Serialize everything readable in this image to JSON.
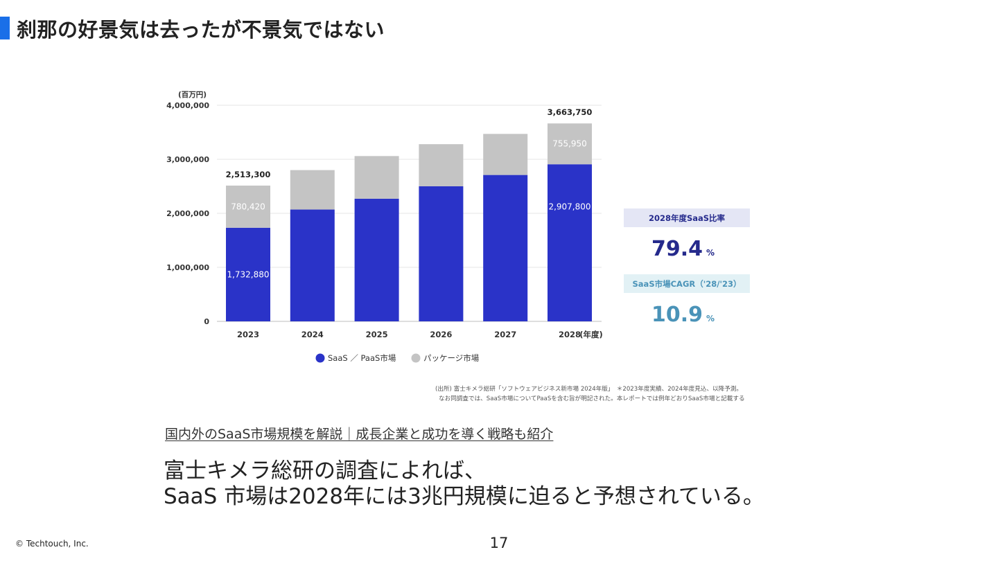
{
  "slide": {
    "title": "刹那の好景気は去ったが不景気ではない",
    "link_text": "国内外のSaaS市場規模を解説｜成長企業と成功を導く戦略も紹介",
    "body_line1": "富士キメラ総研の調査によれば、",
    "body_line2": "SaaS 市場は2028年には3兆円規模に迫ると予想されている。",
    "copyright": "© Techtouch, Inc.",
    "page_number": "17",
    "accent_color": "#1a6fe8"
  },
  "chart_data": {
    "type": "bar",
    "stacked": true,
    "unit_label": "(百万円)",
    "xlabel": "(年度)",
    "categories": [
      "2023",
      "2024",
      "2025",
      "2026",
      "2027",
      "2028"
    ],
    "series": [
      {
        "name": "SaaS ／ PaaS市場",
        "color": "#2a33c8",
        "values": [
          1732880,
          2070000,
          2270000,
          2500000,
          2710000,
          2907800
        ]
      },
      {
        "name": "パッケージ市場",
        "color": "#c4c4c4",
        "values": [
          780420,
          730000,
          790000,
          780000,
          760000,
          755950
        ]
      }
    ],
    "totals_label": [
      "2,513,300",
      "",
      "",
      "",
      "",
      "3,663,750"
    ],
    "segment_labels": {
      "saas": [
        "1,732,880",
        "",
        "",
        "",
        "",
        "2,907,800"
      ],
      "package": [
        "780,420",
        "",
        "",
        "",
        "",
        "755,950"
      ]
    },
    "ylim": [
      0,
      4000000
    ],
    "yticks": [
      0,
      1000000,
      2000000,
      3000000,
      4000000
    ],
    "ytick_labels": [
      "0",
      "1,000,000",
      "2,000,000",
      "3,000,000",
      "4,000,000"
    ],
    "grid": true,
    "legend_position": "bottom",
    "kpis": [
      {
        "label": "2028年度SaaS比率",
        "value": "79.4",
        "unit": "%",
        "label_bg": "#e4e6f5",
        "color": "#252a8c"
      },
      {
        "label": "SaaS市場CAGR（'28/'23）",
        "value": "10.9",
        "unit": "%",
        "label_bg": "#e2f1f5",
        "color": "#4a93b8"
      }
    ],
    "source_note_line1": "(出所) 富士キメラ総研「ソフトウェアビジネス新市場 2024年版」　＊2023年度実績、2024年度見込、以降予測。",
    "source_note_line2": "なお同調査では、SaaS市場についてPaaSを含む旨が明記された。本レポートでは例年どおりSaaS市場と記載する"
  }
}
